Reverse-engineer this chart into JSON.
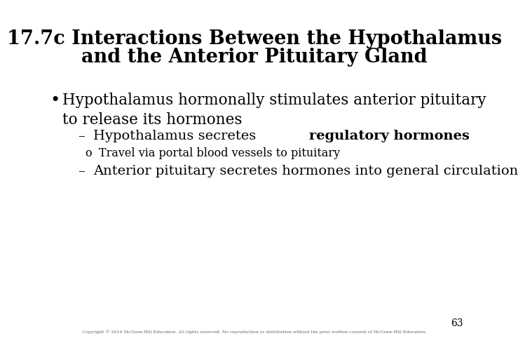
{
  "title_line1": "17.7c Interactions Between the Hypothalamus",
  "title_line2": "and the Anterior Pituitary Gland",
  "background_color": "#ffffff",
  "title_color": "#000000",
  "title_fontsize": 19.5,
  "bullet_color": "#000000",
  "bullet_fontsize": 15.5,
  "sub_fontsize": 14,
  "subsub_fontsize": 11.5,
  "page_number": "63",
  "copyright_text": "Copyright © 2016 McGraw-Hill Education. All rights reserved. No reproduction or distribution without the prior written consent of McGraw-Hill Education.",
  "dash1_normal": "Hypothalamus secretes ",
  "dash1_bold": "regulatory hormones",
  "circle1": "Travel via portal blood vessels to pituitary",
  "dash2": "Anterior pituitary secretes hormones into general circulation"
}
